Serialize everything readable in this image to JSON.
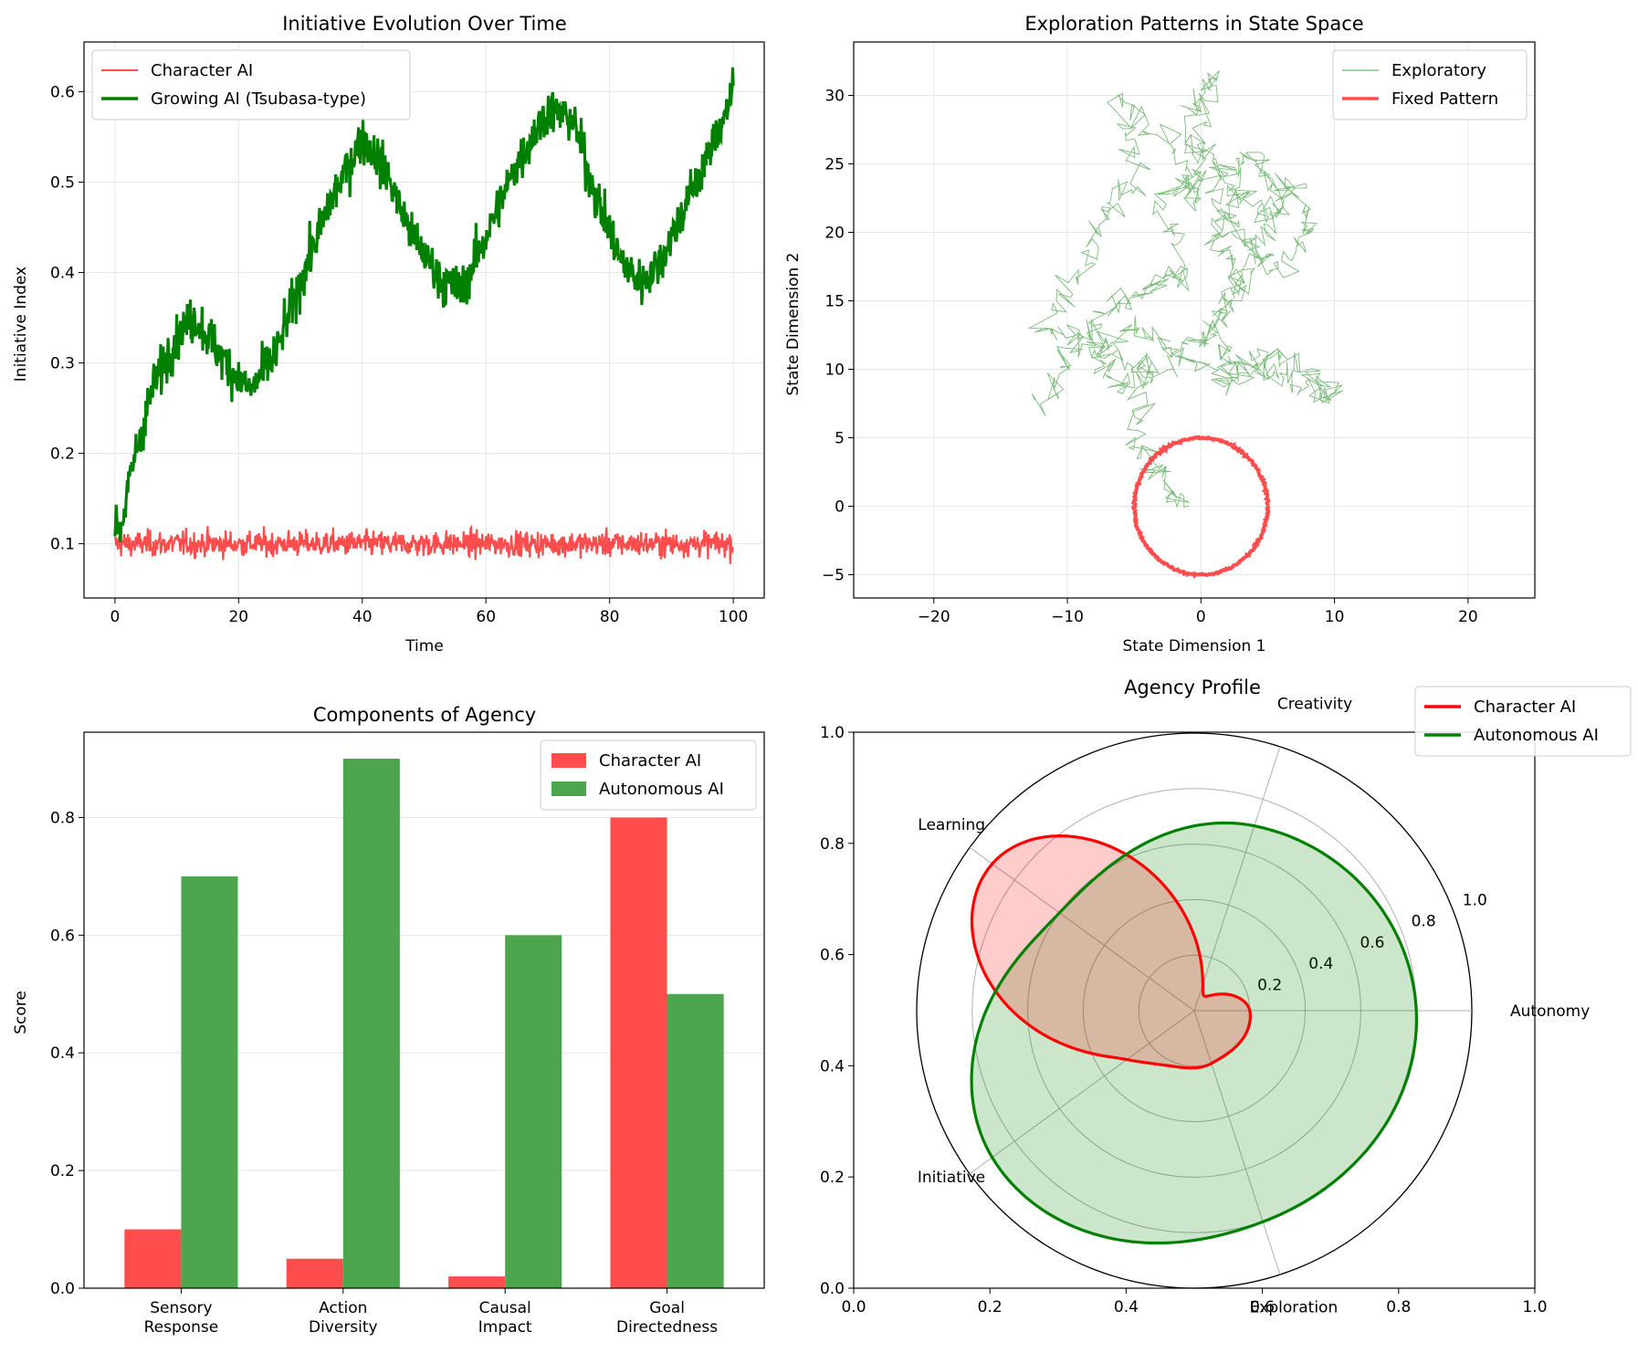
{
  "colors": {
    "character": "#ff0000",
    "growing": "#008000",
    "bar_character": "#ff4d4d",
    "bar_autonomous": "#4da64d",
    "grid": "#e6e6e6",
    "polar_grid": "#b0b0b0"
  },
  "chart_data": [
    {
      "type": "line",
      "title": "Initiative Evolution Over Time",
      "xlabel": "Time",
      "ylabel": "Initiative Index",
      "xlim": [
        -5,
        105
      ],
      "ylim": [
        0.04,
        0.655
      ],
      "xticks": [
        0,
        20,
        40,
        60,
        80,
        100
      ],
      "yticks": [
        0.1,
        0.2,
        0.3,
        0.4,
        0.5,
        0.6
      ],
      "grid": true,
      "legend_position": "upper-left",
      "series": [
        {
          "name": "Character AI",
          "color": "#ff4d4d",
          "mean": 0.1,
          "noise": 0.01
        },
        {
          "name": "Growing AI (Tsubasa-type)",
          "color": "#008000",
          "points": [
            [
              0,
              0.12
            ],
            [
              1,
              0.12
            ],
            [
              3,
              0.19
            ],
            [
              6,
              0.27
            ],
            [
              10,
              0.33
            ],
            [
              13,
              0.35
            ],
            [
              16,
              0.32
            ],
            [
              19,
              0.29
            ],
            [
              22,
              0.27
            ],
            [
              26,
              0.31
            ],
            [
              30,
              0.39
            ],
            [
              35,
              0.48
            ],
            [
              40,
              0.55
            ],
            [
              44,
              0.51
            ],
            [
              48,
              0.44
            ],
            [
              53,
              0.39
            ],
            [
              56,
              0.38
            ],
            [
              60,
              0.44
            ],
            [
              65,
              0.52
            ],
            [
              70,
              0.58
            ],
            [
              74,
              0.57
            ],
            [
              78,
              0.48
            ],
            [
              82,
              0.41
            ],
            [
              85,
              0.39
            ],
            [
              88,
              0.41
            ],
            [
              92,
              0.47
            ],
            [
              96,
              0.53
            ],
            [
              100,
              0.6
            ]
          ],
          "noise": 0.018
        }
      ]
    },
    {
      "type": "line",
      "title": "Exploration Patterns in State Space",
      "xlabel": "State Dimension 1",
      "ylabel": "State Dimension 2",
      "xlim": [
        -26,
        25
      ],
      "ylim": [
        -6.7,
        33.9
      ],
      "xticks": [
        -20,
        -10,
        0,
        10,
        20
      ],
      "yticks": [
        -5,
        0,
        5,
        10,
        15,
        20,
        25,
        30
      ],
      "grid": true,
      "legend_position": "upper-right",
      "series": [
        {
          "name": "Exploratory",
          "color": "#4da64d",
          "waypoints": [
            [
              -1,
              0
            ],
            [
              -3,
              2
            ],
            [
              -5,
              5
            ],
            [
              -4,
              10
            ],
            [
              -8,
              12
            ],
            [
              -12,
              13
            ],
            [
              -9,
              17
            ],
            [
              -7,
              21
            ],
            [
              -5,
              24
            ],
            [
              -6,
              30
            ],
            [
              -2,
              26
            ],
            [
              0,
              22
            ],
            [
              -1,
              28
            ],
            [
              1,
              32
            ],
            [
              0,
              26
            ],
            [
              2,
              24
            ],
            [
              4,
              26
            ],
            [
              6,
              22
            ],
            [
              4,
              18
            ],
            [
              2,
              15
            ],
            [
              0,
              12
            ],
            [
              -3,
              10
            ],
            [
              -6,
              9
            ],
            [
              -8,
              11
            ],
            [
              -5,
              13
            ],
            [
              -2,
              11
            ],
            [
              2,
              9
            ],
            [
              4,
              10
            ],
            [
              7,
              9
            ],
            [
              10,
              8
            ],
            [
              8,
              10
            ],
            [
              5,
              11
            ],
            [
              2,
              10
            ],
            [
              1,
              13
            ],
            [
              3,
              16
            ],
            [
              1,
              20
            ],
            [
              3,
              23
            ],
            [
              5,
              21
            ],
            [
              7,
              24
            ],
            [
              8,
              20
            ],
            [
              6,
              17
            ],
            [
              3,
              20
            ],
            [
              0,
              24
            ],
            [
              -3,
              22
            ],
            [
              -1,
              17
            ],
            [
              -4,
              16
            ],
            [
              -7,
              14
            ],
            [
              -10,
              11
            ],
            [
              -12,
              7
            ]
          ]
        },
        {
          "name": "Fixed Pattern",
          "color": "#ff4d4d",
          "center": [
            0,
            0
          ],
          "radius": 5
        }
      ]
    },
    {
      "type": "bar",
      "title": "Components of Agency",
      "xlabel": "",
      "ylabel": "Score",
      "ylim": [
        0,
        0.945
      ],
      "yticks": [
        0.0,
        0.2,
        0.4,
        0.6,
        0.8
      ],
      "grid": true,
      "legend_position": "upper-right",
      "categories": [
        [
          "Sensory",
          "Response"
        ],
        [
          "Action",
          "Diversity"
        ],
        [
          "Causal",
          "Impact"
        ],
        [
          "Goal",
          "Directedness"
        ]
      ],
      "series": [
        {
          "name": "Character AI",
          "values": [
            0.1,
            0.05,
            0.02,
            0.8
          ]
        },
        {
          "name": "Autonomous AI",
          "values": [
            0.7,
            0.9,
            0.6,
            0.5
          ]
        }
      ]
    },
    {
      "type": "radar",
      "title": "Agency Profile",
      "categories": [
        "Autonomy",
        "Creativity",
        "Learning",
        "Initiative",
        "Exploration"
      ],
      "rlim": [
        0,
        1.0
      ],
      "rticks": [
        0.2,
        0.4,
        0.6,
        0.8,
        1.0
      ],
      "outer_axis_ticks": [
        "0.0",
        "0.2",
        "0.4",
        "0.6",
        "0.8",
        "1.0"
      ],
      "legend_position": "upper-right-outside",
      "series": [
        {
          "name": "Character AI",
          "color": "#ff0000",
          "values": [
            0.2,
            0.1,
            0.9,
            0.3,
            0.2
          ]
        },
        {
          "name": "Autonomous AI",
          "color": "#008000",
          "values": [
            0.8,
            0.7,
            0.6,
            0.9,
            0.8
          ]
        }
      ]
    }
  ]
}
